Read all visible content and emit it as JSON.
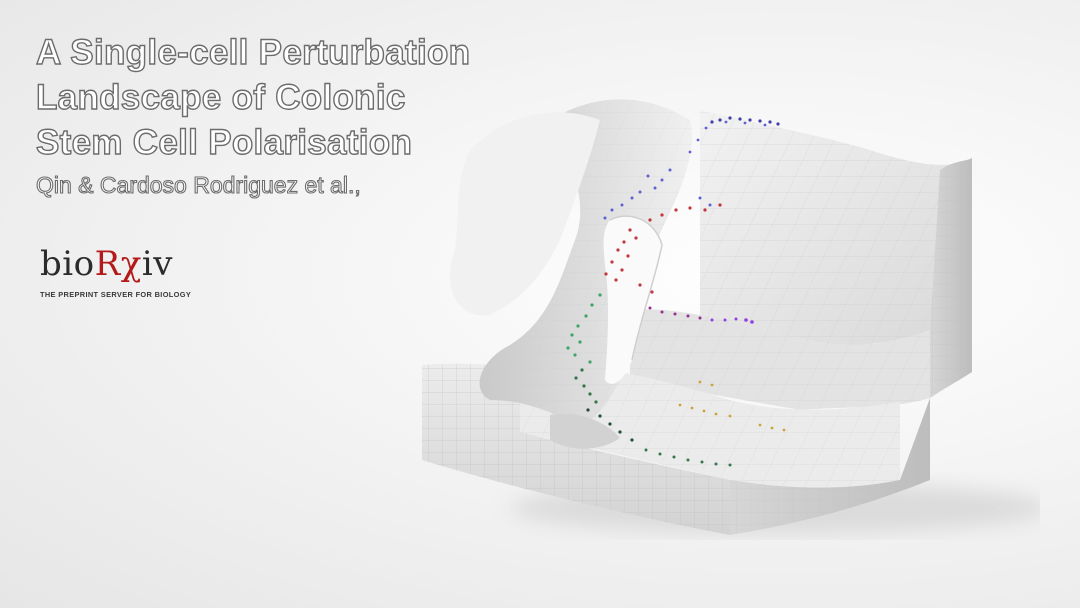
{
  "title": {
    "lines": [
      "A Single-cell Perturbation",
      "Landscape of Colonic",
      "Stem Cell Polarisation"
    ],
    "authors": "Qin & Cardoso Rodriguez et al.,"
  },
  "logo": {
    "prefix": "bio",
    "mark": "R",
    "middle": "χ",
    "suffix": "iv",
    "tagline": "THE PREPRINT SERVER FOR BIOLOGY"
  },
  "colors": {
    "title_fill": "#ffffff",
    "title_outline": "#6c6c6c",
    "logo_red": "#b31b1b",
    "cells": [
      "#2b2b9e",
      "#5050d0",
      "#c0202a",
      "#8a1a8a",
      "#8a2be2",
      "#2e9e5a",
      "#1f6b3a",
      "#0f3d22",
      "#c99a2e"
    ]
  }
}
